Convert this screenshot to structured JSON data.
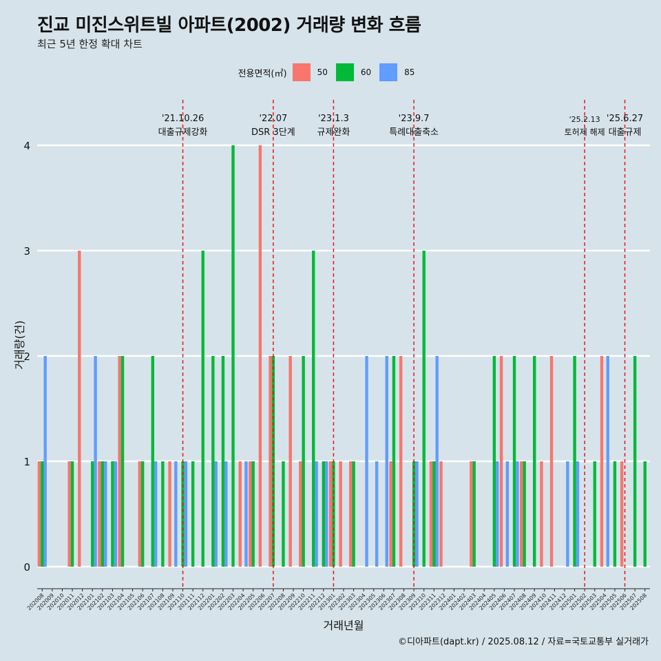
{
  "title": "진교 미진스위트빌 아파트(2002) 거래량 변화 흐름",
  "subtitle": "최근 5년 한정 확대 차트",
  "caption": "©디아파트(dapt.kr) / 2025.08.12 / 자료=국토교통부 실거래가",
  "legend": {
    "title": "전용면적(㎡)",
    "items": [
      {
        "label": "50",
        "color": "#f8766d"
      },
      {
        "label": "60",
        "color": "#00ba38"
      },
      {
        "label": "85",
        "color": "#619cff"
      }
    ]
  },
  "chart_data": {
    "type": "bar",
    "xlabel": "거래년월",
    "ylabel": "거래량(건)",
    "ylim": [
      0,
      4
    ],
    "yticks": [
      0,
      1,
      2,
      3,
      4
    ],
    "categories": [
      "202008",
      "202009",
      "202010",
      "202011",
      "202012",
      "202101",
      "202102",
      "202103",
      "202104",
      "202105",
      "202106",
      "202107",
      "202108",
      "202109",
      "202110",
      "202111",
      "202112",
      "202201",
      "202202",
      "202203",
      "202204",
      "202205",
      "202206",
      "202207",
      "202208",
      "202209",
      "202210",
      "202211",
      "202212",
      "202301",
      "202302",
      "202303",
      "202304",
      "202305",
      "202306",
      "202307",
      "202308",
      "202309",
      "202310",
      "202311",
      "202312",
      "202401",
      "202402",
      "202403",
      "202404",
      "202405",
      "202406",
      "202407",
      "202408",
      "202409",
      "202410",
      "202411",
      "202412",
      "202501",
      "202502",
      "202503",
      "202504",
      "202505",
      "202506",
      "202507",
      "202508"
    ],
    "series": [
      {
        "name": "50",
        "color": "#f8766d",
        "values": [
          1,
          0,
          0,
          1,
          3,
          0,
          1,
          0,
          2,
          0,
          1,
          0,
          0,
          1,
          0,
          0,
          0,
          0,
          0,
          0,
          1,
          1,
          4,
          2,
          0,
          2,
          1,
          0,
          0,
          1,
          1,
          1,
          0,
          0,
          0,
          1,
          2,
          0,
          0,
          1,
          1,
          0,
          0,
          1,
          0,
          0,
          2,
          0,
          1,
          0,
          1,
          2,
          0,
          0,
          0,
          0,
          2,
          0,
          1,
          0,
          0
        ]
      },
      {
        "name": "60",
        "color": "#00ba38",
        "values": [
          1,
          0,
          0,
          1,
          0,
          1,
          1,
          1,
          2,
          0,
          1,
          2,
          1,
          0,
          1,
          1,
          3,
          2,
          2,
          4,
          0,
          1,
          0,
          2,
          1,
          0,
          2,
          3,
          1,
          1,
          0,
          1,
          0,
          0,
          0,
          2,
          0,
          1,
          3,
          1,
          0,
          0,
          0,
          1,
          0,
          2,
          0,
          2,
          1,
          2,
          0,
          0,
          0,
          2,
          0,
          1,
          0,
          1,
          0,
          2,
          1
        ]
      },
      {
        "name": "85",
        "color": "#619cff",
        "values": [
          2,
          0,
          0,
          0,
          0,
          2,
          1,
          1,
          0,
          0,
          0,
          1,
          0,
          1,
          1,
          0,
          0,
          1,
          1,
          0,
          1,
          0,
          0,
          0,
          0,
          0,
          0,
          1,
          1,
          0,
          0,
          0,
          2,
          1,
          2,
          0,
          0,
          1,
          0,
          2,
          0,
          0,
          0,
          0,
          0,
          1,
          1,
          1,
          0,
          0,
          0,
          0,
          1,
          1,
          0,
          0,
          2,
          0,
          0,
          0,
          0
        ]
      }
    ],
    "events": [
      {
        "date": "202110",
        "label1": "'21.10.26",
        "label2": "대출규제강화"
      },
      {
        "date": "202207",
        "label1": "'22.07",
        "label2": "DSR 3단계"
      },
      {
        "date": "202301",
        "label1": "'23.1.3",
        "label2": "규제완화"
      },
      {
        "date": "202309",
        "label1": "'23.9.7",
        "label2": "특례대출축소"
      },
      {
        "date": "202502",
        "label1": "'25.2.13",
        "label2": "토허제 해제"
      },
      {
        "date": "202506",
        "label1": "'25.6.27",
        "label2": "대출규제"
      }
    ]
  }
}
